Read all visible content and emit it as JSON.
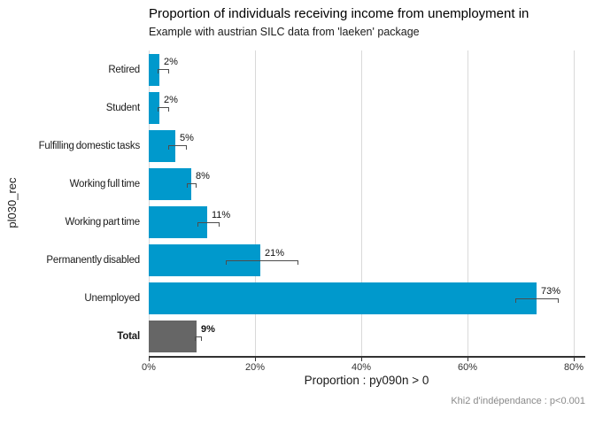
{
  "chart_data": {
    "type": "bar",
    "orientation": "horizontal",
    "title": "Proportion of individuals receiving income from unemployment in",
    "subtitle": "Example with austrian SILC data from 'laeken' package",
    "xlabel": "Proportion : py090n > 0",
    "ylabel": "pl030_rec",
    "caption": "Khi2 d'indépendance : p<0.001",
    "xlim": [
      0,
      82
    ],
    "grid": true,
    "legend": "none",
    "x_ticks": [
      {
        "value": 0,
        "label": "0%"
      },
      {
        "value": 20,
        "label": "20%"
      },
      {
        "value": 40,
        "label": "40%"
      },
      {
        "value": 60,
        "label": "60%"
      },
      {
        "value": 80,
        "label": "80%"
      }
    ],
    "bars": [
      {
        "category": "Retired",
        "value": 2,
        "label": "2%",
        "ci_low": 1.6,
        "ci_high": 3.6,
        "color": "#0099cc",
        "bold": false
      },
      {
        "category": "Student",
        "value": 2,
        "label": "2%",
        "ci_low": 1.6,
        "ci_high": 3.6,
        "color": "#0099cc",
        "bold": false
      },
      {
        "category": "Fulfilling domestic tasks",
        "value": 5,
        "label": "5%",
        "ci_low": 3.7,
        "ci_high": 7.0,
        "color": "#0099cc",
        "bold": false
      },
      {
        "category": "Working full time",
        "value": 8,
        "label": "8%",
        "ci_low": 7.2,
        "ci_high": 8.8,
        "color": "#0099cc",
        "bold": false
      },
      {
        "category": "Working part time",
        "value": 11,
        "label": "11%",
        "ci_low": 9.2,
        "ci_high": 13.1,
        "color": "#0099cc",
        "bold": false
      },
      {
        "category": "Permanently disabled",
        "value": 21,
        "label": "21%",
        "ci_low": 14.5,
        "ci_high": 28.0,
        "color": "#0099cc",
        "bold": false
      },
      {
        "category": "Unemployed",
        "value": 73,
        "label": "73%",
        "ci_low": 69.0,
        "ci_high": 77.0,
        "color": "#0099cc",
        "bold": false
      },
      {
        "category": "Total",
        "value": 9,
        "label": "9%",
        "ci_low": 8.7,
        "ci_high": 9.8,
        "color": "#666666",
        "bold": true
      }
    ],
    "colors": {
      "bar": "#0099cc",
      "total_bar": "#666666",
      "gridline": "#d9d9d9",
      "axis_line": "#333333",
      "error_bar": "#4d4d4d",
      "caption_text": "#8a8a8a"
    }
  }
}
